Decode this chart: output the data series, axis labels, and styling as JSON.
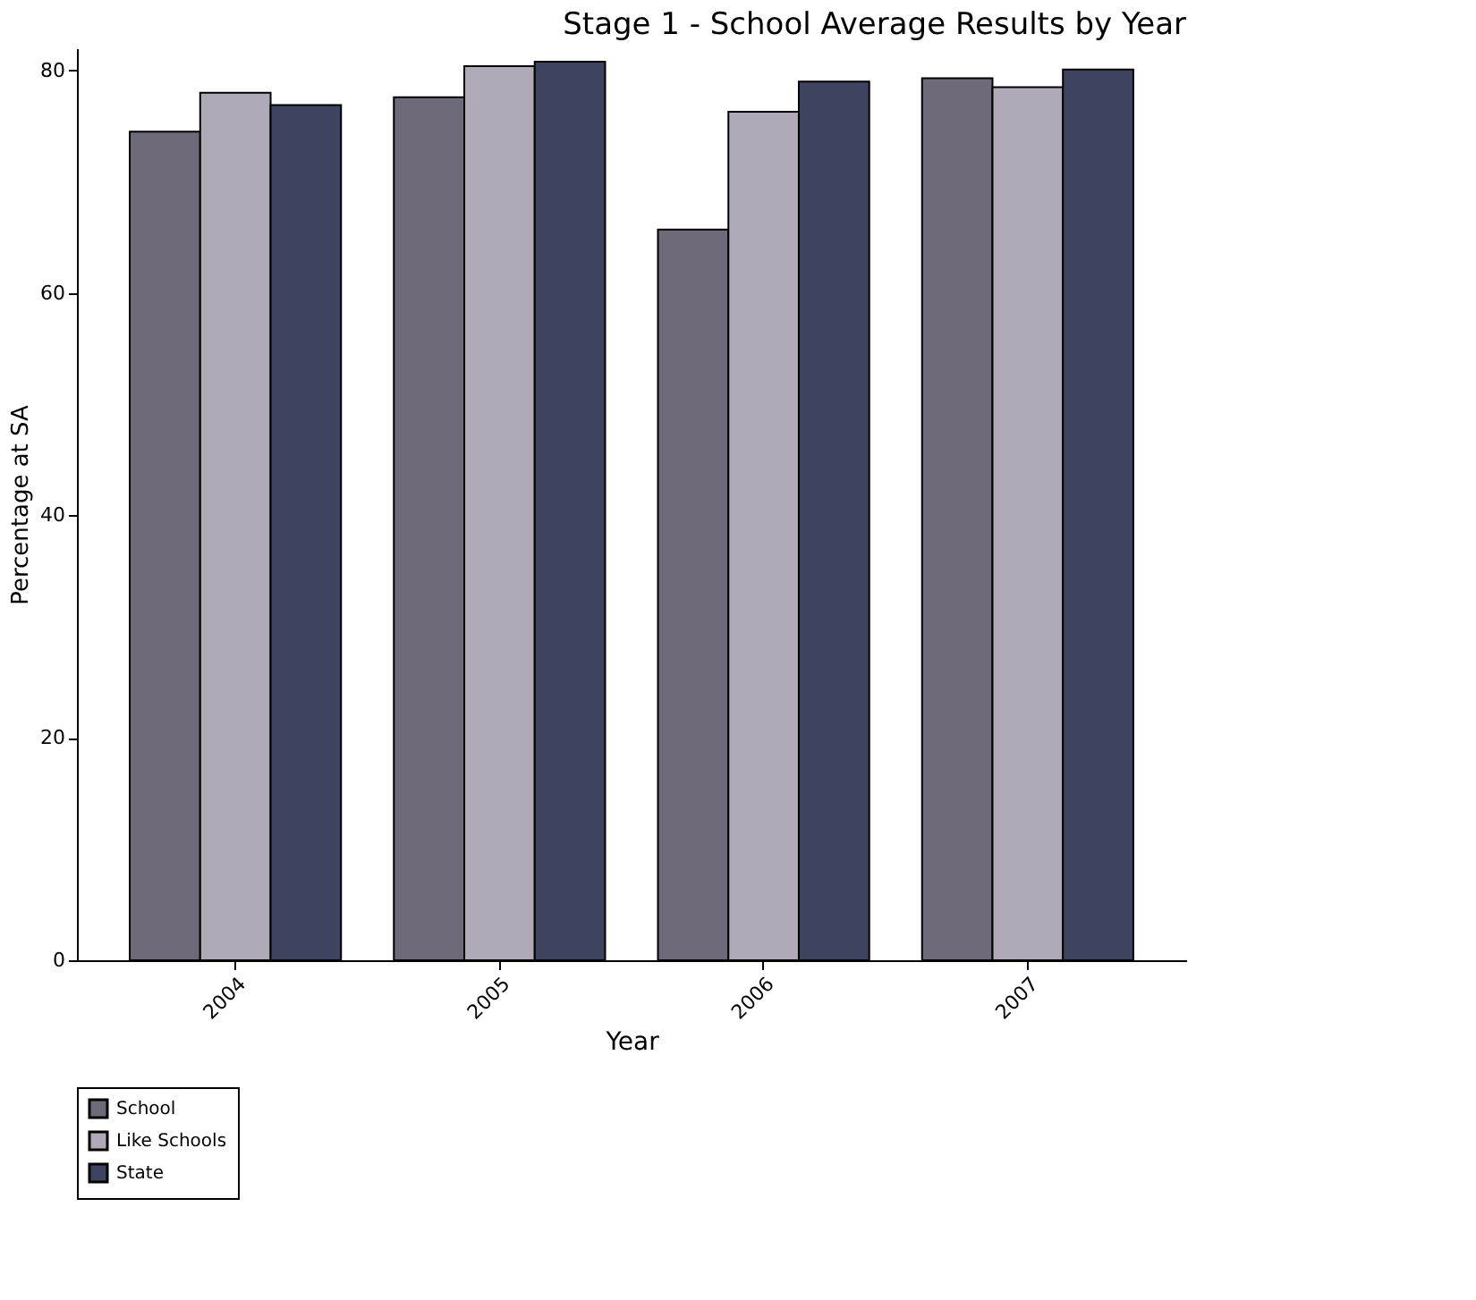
{
  "chart_data": {
    "type": "bar",
    "title": "Stage 1 - School Average Results by Year",
    "xlabel": "Year",
    "ylabel": "Percentage at SA",
    "categories": [
      "2004",
      "2005",
      "2006",
      "2007"
    ],
    "series": [
      {
        "name": "School",
        "color": "#6e6a7a",
        "values": [
          74.5,
          77.6,
          65.7,
          79.3
        ]
      },
      {
        "name": "Like Schools",
        "color": "#b0a9b8",
        "values": [
          78.0,
          80.4,
          76.3,
          78.5
        ]
      },
      {
        "name": "State",
        "color": "#3e4460",
        "values": [
          76.9,
          80.8,
          79.0,
          80.1
        ]
      }
    ],
    "ylim": [
      0,
      82
    ],
    "yticks": [
      0,
      20,
      40,
      60,
      80
    ],
    "grid": false,
    "legend": "bottom"
  }
}
